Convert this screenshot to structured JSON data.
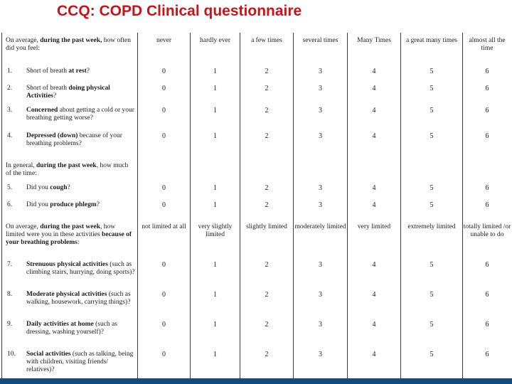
{
  "title": "CCQ: COPD Clinical questionnaire",
  "colors": {
    "title_red": "#c3161c",
    "table_line": "#3d3d3d",
    "bottom_bar": "#17497b"
  },
  "table": {
    "sections": [
      {
        "header": "On average, **during the past week,** how often did you feel:",
        "columns": [
          "never",
          "hardly ever",
          "a few times",
          "several times",
          "Many Times",
          "a great many times",
          "almost all the time"
        ],
        "rows": [
          {
            "num": "1.",
            "question": "Short of breath **at rest**?",
            "values": [
              0,
              1,
              2,
              3,
              4,
              5,
              6
            ]
          },
          {
            "num": "2.",
            "question": "Short of breath **doing physical Activities**?",
            "values": [
              0,
              1,
              2,
              3,
              4,
              5,
              6
            ]
          },
          {
            "num": "3.",
            "question": "**Concerned** about getting a cold or your breathing getting worse?",
            "values": [
              0,
              1,
              2,
              3,
              4,
              5,
              6
            ]
          },
          {
            "num": "4.",
            "question": "**Depressed (down)** because of your breathing problems?",
            "values": [
              0,
              1,
              2,
              3,
              4,
              5,
              6
            ]
          }
        ]
      },
      {
        "header": "In general, **during the past week**, how much of the time:",
        "columns": [
          "",
          "",
          "",
          "",
          "",
          "",
          ""
        ],
        "rows": [
          {
            "num": "5.",
            "question": "Did you **cough**?",
            "values": [
              0,
              1,
              2,
              3,
              4,
              5,
              6
            ]
          },
          {
            "num": "6.",
            "question": "Did you **produce phlegm**?",
            "values": [
              0,
              1,
              2,
              3,
              4,
              5,
              6
            ]
          }
        ]
      },
      {
        "header": "On average, **during the past week**, how limited were you in these activities **because of your breathing problems**:",
        "columns": [
          "not limited at all",
          "very slightly limited",
          "slightly limited",
          "moderately limited",
          "very limited",
          "extremely limited",
          "totally limited /or unable to do"
        ],
        "rows": [
          {
            "num": "7.",
            "question": "**Strenuous physical activities** (such as climbing stairs, hurrying, doing sports)?",
            "values": [
              0,
              1,
              2,
              3,
              4,
              5,
              6
            ]
          },
          {
            "num": "8.",
            "question": "**Moderate physical activities** (such as walking, housework, carrying things)?",
            "values": [
              0,
              1,
              2,
              3,
              4,
              5,
              6
            ]
          },
          {
            "num": "9.",
            "question": "**Daily activities at home** (such as dressing, washing yourself)?",
            "values": [
              0,
              1,
              2,
              3,
              4,
              5,
              6
            ]
          },
          {
            "num": "10.",
            "question": "**Social activities** (such as talking, being with children, visiting friends/ relatives)?",
            "values": [
              0,
              1,
              2,
              3,
              4,
              5,
              6
            ]
          }
        ]
      }
    ]
  }
}
